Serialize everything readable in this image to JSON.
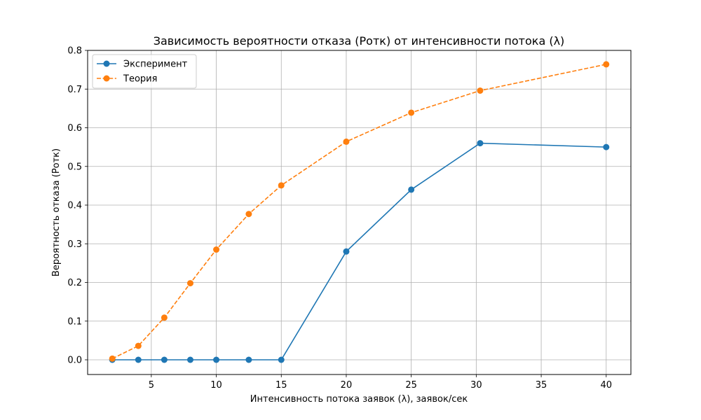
{
  "chart_data": {
    "type": "line",
    "title": "Зависимость вероятности отказа (Pотк) от интенсивности потока (λ)",
    "xlabel": "Интенсивность потока заявок (λ), заявок/сек",
    "ylabel": "Вероятность отказа (Pотк)",
    "xlim": [
      0.1,
      41.9
    ],
    "ylim": [
      -0.038,
      0.8
    ],
    "xticks": [
      5,
      10,
      15,
      20,
      25,
      30,
      35,
      40
    ],
    "yticks": [
      0.0,
      0.1,
      0.2,
      0.3,
      0.4,
      0.5,
      0.6,
      0.7,
      0.8
    ],
    "xtick_labels": [
      "5",
      "10",
      "15",
      "20",
      "25",
      "30",
      "35",
      "40"
    ],
    "ytick_labels": [
      "0.0",
      "0.1",
      "0.2",
      "0.3",
      "0.4",
      "0.5",
      "0.6",
      "0.7",
      "0.8"
    ],
    "grid": true,
    "legend": "top-left",
    "series": [
      {
        "name": "Эксперимент",
        "color": "#1f77b4",
        "linestyle": "solid",
        "marker": "circle",
        "x": [
          2,
          4,
          6,
          8,
          10,
          12.5,
          15,
          20,
          25,
          30.3,
          40
        ],
        "y": [
          0.0,
          0.0,
          0.0,
          0.0,
          0.0,
          0.0,
          0.0,
          0.28,
          0.44,
          0.56,
          0.55
        ]
      },
      {
        "name": "Теория",
        "color": "#ff7f0e",
        "linestyle": "dashed",
        "marker": "circle",
        "x": [
          2,
          4,
          6,
          8,
          10,
          12.5,
          15,
          20,
          25,
          30.3,
          40
        ],
        "y": [
          0.003,
          0.036,
          0.109,
          0.198,
          0.285,
          0.377,
          0.451,
          0.564,
          0.639,
          0.696,
          0.764
        ]
      }
    ]
  }
}
